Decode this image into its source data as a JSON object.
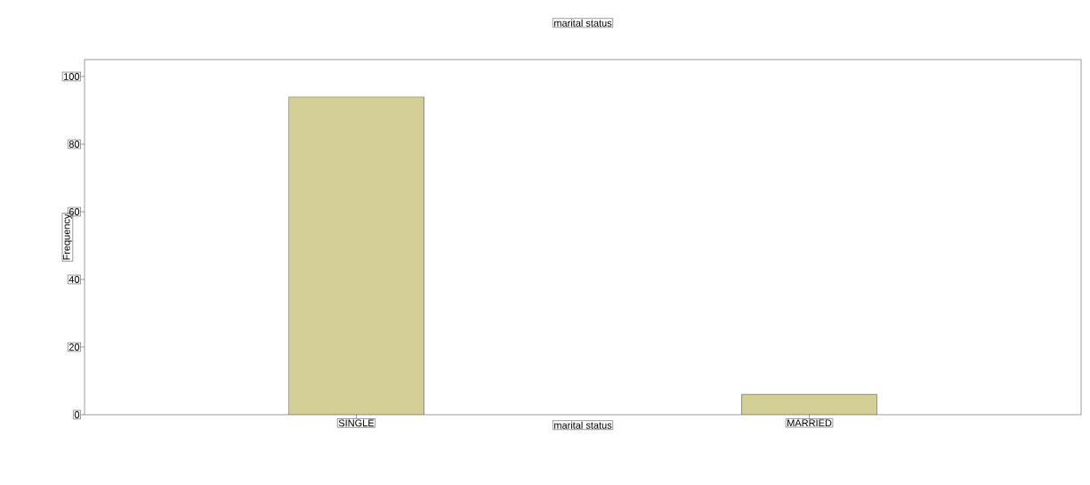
{
  "chart_data": {
    "type": "bar",
    "title": "marital status",
    "xlabel": "marital status",
    "ylabel": "Frequency",
    "categories": [
      "SINGLE",
      "MARRIED"
    ],
    "values": [
      94,
      6
    ],
    "color": "#d3cf97",
    "ylim": [
      0,
      105
    ],
    "yticks": [
      0,
      20,
      40,
      60,
      80,
      100
    ],
    "grid": false
  }
}
